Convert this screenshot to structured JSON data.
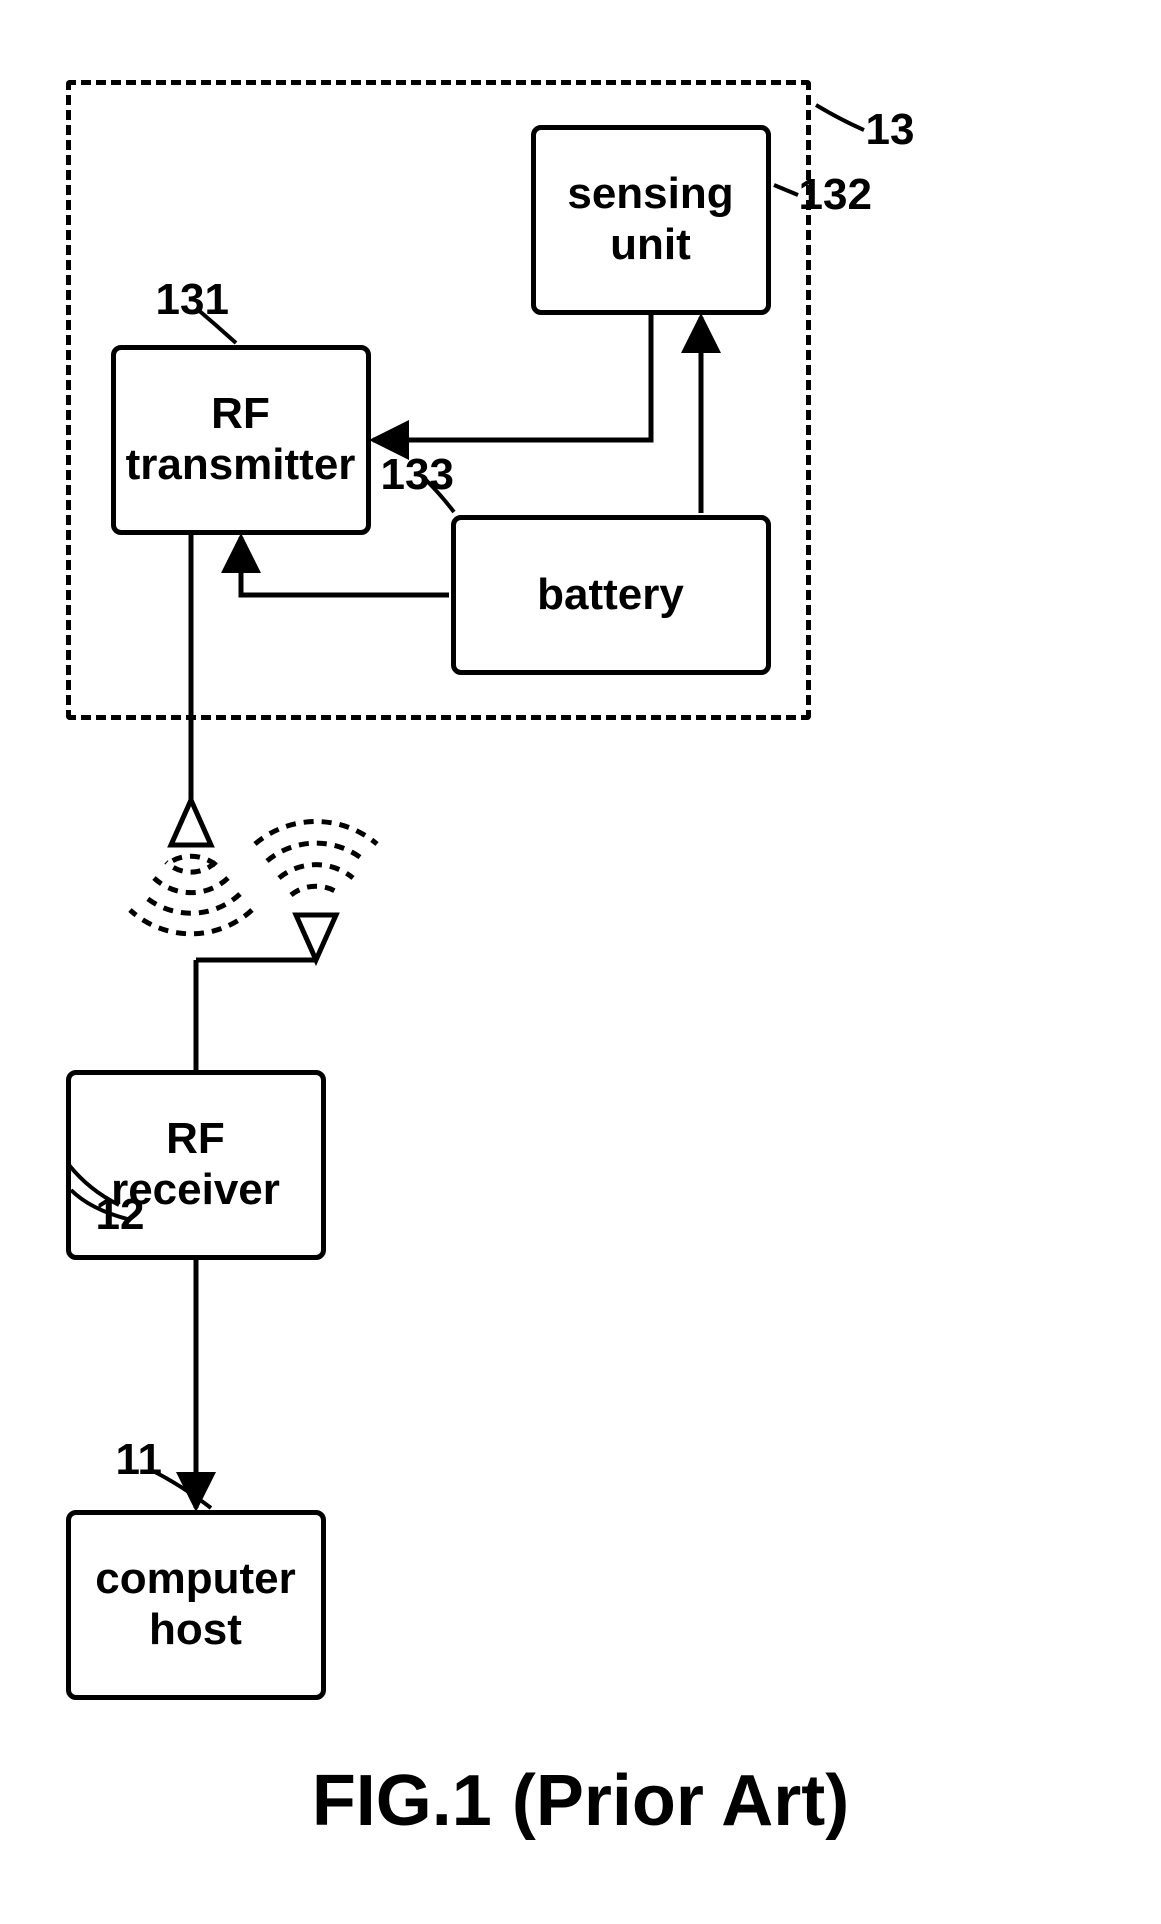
{
  "figure": {
    "caption": "FIG.1 (Prior Art)",
    "caption_fontsize": 72,
    "label_fontsize": 44,
    "ref_fontsize": 44,
    "line_width": 5,
    "arrow_size": 18,
    "colors": {
      "stroke": "#000000",
      "bg": "#ffffff"
    },
    "blocks": {
      "computer_host": {
        "label": "computer\nhost",
        "ref": "11"
      },
      "rf_receiver": {
        "label": "RF\nreceiver",
        "ref": "12"
      },
      "wireless_device": {
        "ref": "13"
      },
      "rf_transmitter": {
        "label": "RF\ntransmitter",
        "ref": "131"
      },
      "sensing_unit": {
        "label": "sensing\nunit",
        "ref": "132"
      },
      "battery": {
        "label": "battery",
        "ref": "133"
      }
    }
  }
}
